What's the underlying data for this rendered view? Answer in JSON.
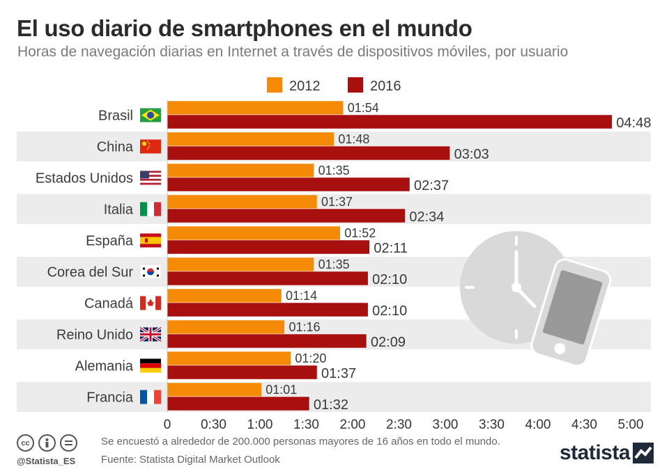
{
  "title": "El uso diario de smartphones en el mundo",
  "subtitle": "Horas de navegación diarias en Internet a través de dispositivos móviles, por usuario",
  "footer": {
    "note": "Se encuestó a alrededor de 200.000 personas mayores de 16 años en todo el mundo.",
    "source": "Fuente: Statista Digital Market Outlook",
    "handle": "@Statista_ES",
    "brand": "statista"
  },
  "icons": [
    "cc-icon",
    "by-icon",
    "nd-icon",
    "clock-icon",
    "smartphone-icon",
    "statista-logo-icon"
  ],
  "colors": {
    "2012": "#f58a07",
    "2016": "#a80f0f",
    "stripe": "#ececec"
  },
  "chart_data": {
    "type": "bar",
    "orientation": "horizontal",
    "unit": "minutes",
    "categories": [
      "Brasil",
      "China",
      "Estados Unidos",
      "Italia",
      "España",
      "Corea del Sur",
      "Canadá",
      "Reino Unido",
      "Alemania",
      "Francia"
    ],
    "flags": [
      "flag-brazil",
      "flag-china",
      "flag-usa",
      "flag-italy",
      "flag-spain",
      "flag-south-korea",
      "flag-canada",
      "flag-uk",
      "flag-germany",
      "flag-france"
    ],
    "series": [
      {
        "name": "2012",
        "color": "#f58a07",
        "values": [
          114,
          108,
          95,
          97,
          112,
          95,
          74,
          76,
          80,
          61
        ],
        "labels": [
          "01:54",
          "01:48",
          "01:35",
          "01:37",
          "01:52",
          "01:35",
          "01:14",
          "01:16",
          "01:20",
          "01:01"
        ]
      },
      {
        "name": "2016",
        "color": "#a80f0f",
        "values": [
          288,
          183,
          157,
          154,
          131,
          130,
          130,
          129,
          97,
          92
        ],
        "labels": [
          "04:48",
          "03:03",
          "02:37",
          "02:34",
          "02:11",
          "02:10",
          "02:10",
          "02:09",
          "01:37",
          "01:32"
        ]
      }
    ],
    "xlim": [
      0,
      300
    ],
    "xticks": [
      0,
      30,
      60,
      90,
      120,
      150,
      180,
      210,
      240,
      270,
      300
    ],
    "xtick_labels": [
      "0",
      "0:30",
      "1:00",
      "1:30",
      "2:00",
      "2:30",
      "3:00",
      "3:30",
      "4:00",
      "4:30",
      "5:00"
    ],
    "legend_position": "top-center",
    "grid": false
  }
}
